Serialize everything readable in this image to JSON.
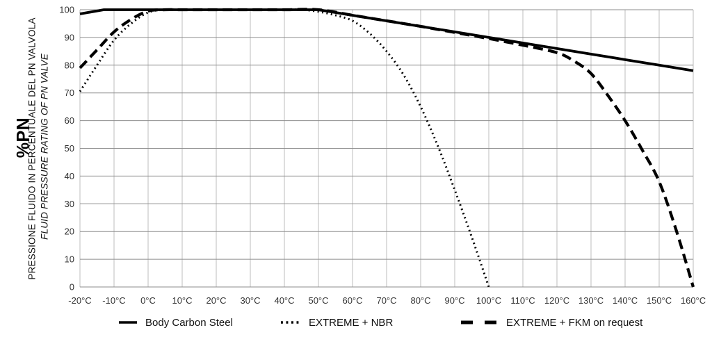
{
  "chart": {
    "y_axis_title_main": "%PN",
    "y_axis_title_it": "PRESSIONE FLUIDO IN PERCENTUALE DEL PN VALVOLA",
    "y_axis_title_en": "FLUID PRESSURE RATING OF PN VALVE"
  },
  "legend": {
    "items": [
      {
        "label": "Body Carbon Steel",
        "style": "solid"
      },
      {
        "label": "EXTREME + NBR",
        "style": "dotted"
      },
      {
        "label": "EXTREME + FKM on request",
        "style": "dashed"
      }
    ]
  },
  "chart_data": {
    "type": "line",
    "title": "",
    "xlabel": "",
    "ylabel": "%PN — PRESSIONE FLUIDO IN PERCENTUALE DEL PN VALVOLA / FLUID PRESSURE RATING OF PN VALVE",
    "xlim": [
      -20,
      160
    ],
    "ylim": [
      0,
      100
    ],
    "grid": true,
    "legend_position": "bottom",
    "line_color": "#000000",
    "x_ticks": [
      -20,
      -10,
      0,
      10,
      20,
      30,
      40,
      50,
      60,
      70,
      80,
      90,
      100,
      110,
      120,
      130,
      140,
      150,
      160
    ],
    "x_tick_labels": [
      "-20°C",
      "-10°C",
      "0°C",
      "10°C",
      "20°C",
      "30°C",
      "40°C",
      "50°C",
      "60°C",
      "70°C",
      "80°C",
      "90°C",
      "100°C",
      "110°C",
      "120°C",
      "130°C",
      "140°C",
      "150°C",
      "160°C"
    ],
    "y_ticks": [
      0,
      10,
      20,
      30,
      40,
      50,
      60,
      70,
      80,
      90,
      100
    ],
    "y_tick_labels": [
      "0",
      "10",
      "20",
      "30",
      "40",
      "50",
      "60",
      "70",
      "80",
      "90",
      "100"
    ],
    "series": [
      {
        "name": "EXTREME + NBR",
        "style": "dotted",
        "smooth": true,
        "points": [
          [
            -20,
            70.5
          ],
          [
            -15,
            80
          ],
          [
            -10,
            89
          ],
          [
            -5,
            95
          ],
          [
            0,
            99
          ],
          [
            5,
            100
          ],
          [
            10,
            100
          ],
          [
            20,
            100
          ],
          [
            30,
            100
          ],
          [
            40,
            100
          ],
          [
            45,
            100
          ],
          [
            50,
            99.3
          ],
          [
            55,
            98
          ],
          [
            60,
            96
          ],
          [
            65,
            91.5
          ],
          [
            70,
            85
          ],
          [
            75,
            76.5
          ],
          [
            80,
            65
          ],
          [
            85,
            51
          ],
          [
            90,
            35
          ],
          [
            95,
            18
          ],
          [
            100,
            0
          ]
        ]
      },
      {
        "name": "EXTREME + FKM on request",
        "style": "dashed",
        "smooth": true,
        "points": [
          [
            -20,
            79
          ],
          [
            -15,
            85.5
          ],
          [
            -10,
            92
          ],
          [
            -5,
            96.5
          ],
          [
            0,
            99.5
          ],
          [
            5,
            100
          ],
          [
            10,
            100
          ],
          [
            20,
            100
          ],
          [
            30,
            100
          ],
          [
            40,
            100
          ],
          [
            50,
            100
          ],
          [
            60,
            98
          ],
          [
            70,
            96
          ],
          [
            80,
            94
          ],
          [
            90,
            91.8
          ],
          [
            100,
            89.6
          ],
          [
            110,
            87.2
          ],
          [
            120,
            84.5
          ],
          [
            125,
            81.5
          ],
          [
            130,
            77
          ],
          [
            135,
            69
          ],
          [
            140,
            60
          ],
          [
            145,
            49.5
          ],
          [
            150,
            38
          ],
          [
            155,
            20.5
          ],
          [
            160,
            0
          ]
        ]
      },
      {
        "name": "Body Carbon Steel",
        "style": "solid",
        "smooth": false,
        "points": [
          [
            -20,
            98.5
          ],
          [
            -13,
            100
          ],
          [
            0,
            100
          ],
          [
            10,
            100
          ],
          [
            20,
            100
          ],
          [
            30,
            100
          ],
          [
            40,
            100
          ],
          [
            50,
            100
          ],
          [
            60,
            98
          ],
          [
            70,
            96
          ],
          [
            80,
            94
          ],
          [
            90,
            92
          ],
          [
            100,
            90
          ],
          [
            110,
            88
          ],
          [
            120,
            86
          ],
          [
            130,
            84
          ],
          [
            140,
            82
          ],
          [
            150,
            80
          ],
          [
            160,
            78
          ]
        ]
      }
    ]
  }
}
